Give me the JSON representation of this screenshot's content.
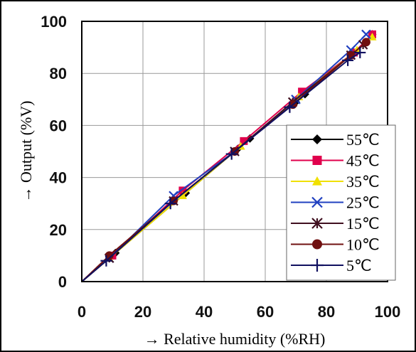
{
  "chart_data": {
    "type": "line",
    "title": "",
    "xlabel": "→ Relative humidity (%RH)",
    "ylabel": "→ Output (%V)",
    "xlim": [
      0,
      100
    ],
    "ylim": [
      0,
      100
    ],
    "xticks": [
      0,
      20,
      40,
      60,
      80,
      100
    ],
    "yticks": [
      0,
      20,
      40,
      60,
      80,
      100
    ],
    "grid": true,
    "legend_position": "bottom-right",
    "series": [
      {
        "name": "55℃",
        "color": "#000000",
        "marker": "diamond",
        "x": [
          0,
          11,
          34,
          51,
          55,
          70,
          73,
          89,
          93,
          95
        ],
        "y": [
          0,
          11,
          34,
          51,
          55,
          69,
          72,
          88,
          92,
          95
        ]
      },
      {
        "name": "45℃",
        "color": "#e0004c",
        "marker": "square",
        "x": [
          0,
          10,
          33,
          53,
          72,
          89,
          95
        ],
        "y": [
          0,
          10,
          35,
          54,
          73,
          88,
          95
        ]
      },
      {
        "name": "35℃",
        "color": "#f0e000",
        "marker": "triangle",
        "x": [
          0,
          9,
          33,
          52,
          71,
          90,
          95
        ],
        "y": [
          0,
          9,
          33,
          52,
          71,
          89,
          94
        ]
      },
      {
        "name": "25℃",
        "color": "#2040c0",
        "marker": "x",
        "x": [
          0,
          9,
          30,
          50,
          70,
          88,
          93
        ],
        "y": [
          0,
          9,
          33,
          50,
          70,
          89,
          95
        ]
      },
      {
        "name": "15℃",
        "color": "#401020",
        "marker": "asterisk",
        "x": [
          0,
          9,
          30,
          50,
          69,
          88,
          92
        ],
        "y": [
          0,
          9,
          31,
          50,
          69,
          87,
          91
        ]
      },
      {
        "name": "10℃",
        "color": "#701010",
        "marker": "circle",
        "x": [
          0,
          9,
          30,
          50,
          69,
          88,
          93
        ],
        "y": [
          0,
          10,
          31,
          50,
          68,
          87,
          92
        ]
      },
      {
        "name": "5℃",
        "color": "#101060",
        "marker": "plus",
        "x": [
          0,
          8,
          29,
          49,
          68,
          87,
          91
        ],
        "y": [
          0,
          8,
          30,
          49,
          67,
          85,
          88
        ]
      }
    ]
  }
}
